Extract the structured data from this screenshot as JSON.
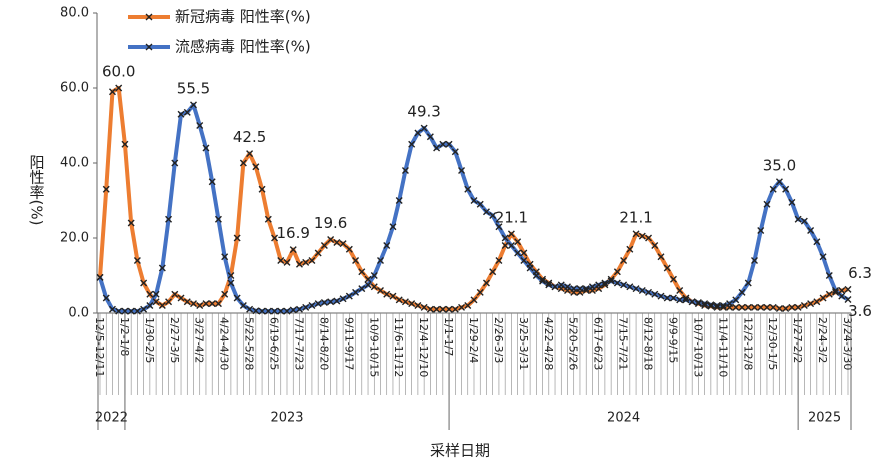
{
  "chart_data": {
    "type": "line",
    "y_label": "阳性率(%)",
    "x_label": "采样日期",
    "ylim": [
      0,
      80
    ],
    "yticks": [
      {
        "value": 0,
        "label": "0.0"
      },
      {
        "value": 20,
        "label": "20.0"
      },
      {
        "value": 40,
        "label": "40.0"
      },
      {
        "value": 60,
        "label": "60.0"
      },
      {
        "value": 80,
        "label": "80.0"
      }
    ],
    "x_groups": [
      "2022",
      "2023",
      "2024",
      "2025"
    ],
    "legend": "upper left",
    "categories": [
      "12/5-12/11",
      null,
      null,
      null,
      "1/2-1/8",
      null,
      null,
      null,
      "1/30-2/5",
      null,
      null,
      null,
      "2/27-3/5",
      null,
      null,
      null,
      "3/27-4/2",
      null,
      null,
      null,
      "4/24-4/30",
      null,
      null,
      null,
      "5/22-5/28",
      null,
      null,
      null,
      "6/19-6/25",
      null,
      null,
      null,
      "7/17-7/23",
      null,
      null,
      null,
      "8/14-8/20",
      null,
      null,
      null,
      "9/11-9/17",
      null,
      null,
      null,
      "10/9-10/15",
      null,
      null,
      null,
      "11/6-11/12",
      null,
      null,
      null,
      "12/4-12/10",
      null,
      null,
      null,
      "1/1-1/7",
      null,
      null,
      null,
      "1/29-2/4",
      null,
      null,
      null,
      "2/26-3/3",
      null,
      null,
      null,
      "3/25-3/31",
      null,
      null,
      null,
      "4/22-4/28",
      null,
      null,
      null,
      "5/20-5/26",
      null,
      null,
      null,
      "6/17-6/23",
      null,
      null,
      null,
      "7/15-7/21",
      null,
      null,
      null,
      "8/12-8/18",
      null,
      null,
      null,
      "9/9-9/15",
      null,
      null,
      null,
      "10/7-10/13",
      null,
      null,
      null,
      "11/4-11/10",
      null,
      null,
      null,
      "12/2-12/8",
      null,
      null,
      null,
      "12/30-1/5",
      null,
      null,
      null,
      "1/27-2/2",
      null,
      null,
      null,
      "2/24-3/2",
      null,
      null,
      null,
      "3/24-3/30"
    ],
    "series": [
      {
        "name": "新冠病毒 阳性率(%)",
        "color": "#ed7d31",
        "values": [
          9.5,
          33,
          59,
          60,
          45,
          24,
          14,
          8,
          5,
          3,
          2,
          3,
          5,
          4,
          3,
          2.5,
          2,
          2.5,
          2.5,
          2.5,
          5,
          10,
          20,
          40,
          42.5,
          39,
          33,
          25,
          20,
          14,
          13.5,
          16.9,
          13,
          13.5,
          14,
          16,
          18,
          19.6,
          18.8,
          18.5,
          17,
          14,
          11,
          9,
          7,
          6,
          5,
          4.5,
          3.5,
          3,
          2.5,
          2,
          1.5,
          1,
          1,
          1,
          1,
          1,
          1.5,
          2,
          3.5,
          5.5,
          8,
          11,
          14,
          18,
          21.1,
          19,
          16,
          13,
          11,
          9,
          8,
          7,
          6.5,
          6,
          5.5,
          5.5,
          6,
          6,
          6.5,
          7.5,
          9,
          11,
          14,
          17,
          21.1,
          20.5,
          20,
          18,
          15,
          12,
          9,
          6,
          4,
          3,
          2.5,
          2,
          1.8,
          1.5,
          1.5,
          1.5,
          1.5,
          1.5,
          1.5,
          1.5,
          1.5,
          1.5,
          1.5,
          1.2,
          1.2,
          1.5,
          1.5,
          2,
          2.5,
          3,
          4,
          5,
          5.5,
          6,
          6.3
        ],
        "value_labels": [
          null,
          null,
          null,
          "60.0",
          null,
          null,
          null,
          null,
          null,
          null,
          null,
          null,
          null,
          null,
          null,
          null,
          null,
          null,
          null,
          null,
          null,
          null,
          null,
          null,
          "42.5",
          null,
          null,
          null,
          null,
          null,
          null,
          "16.9",
          null,
          null,
          null,
          null,
          null,
          "19.6",
          null,
          null,
          null,
          null,
          null,
          null,
          null,
          null,
          null,
          null,
          null,
          null,
          null,
          null,
          null,
          null,
          null,
          null,
          null,
          null,
          null,
          null,
          null,
          null,
          null,
          null,
          null,
          null,
          "21.1",
          null,
          null,
          null,
          null,
          null,
          null,
          null,
          null,
          null,
          null,
          null,
          null,
          null,
          null,
          null,
          null,
          null,
          null,
          null,
          "21.1",
          null,
          null,
          null,
          null,
          null,
          null,
          null,
          null,
          null,
          null,
          null,
          null,
          null,
          null,
          null,
          null,
          null,
          null,
          null,
          null,
          null,
          null,
          null,
          null,
          null,
          null,
          null,
          null,
          null,
          null,
          null,
          null,
          null,
          "6.3"
        ]
      },
      {
        "name": "流感病毒 阳性率(%)",
        "color": "#4472c4",
        "values": [
          9.5,
          4,
          1,
          0.5,
          0.5,
          0.5,
          0.5,
          1,
          2,
          5,
          12,
          25,
          40,
          53,
          53.5,
          55.5,
          50,
          44,
          35,
          25,
          15,
          8,
          4,
          2,
          1,
          0.6,
          0.5,
          0.5,
          0.5,
          0.5,
          0.5,
          0.8,
          1,
          1.5,
          2,
          2.5,
          2.8,
          3,
          3.2,
          3.8,
          4.5,
          5.5,
          6.5,
          7.5,
          10,
          14,
          18,
          23,
          30,
          38,
          45,
          48,
          49.3,
          47,
          44,
          45,
          45,
          43,
          38,
          33,
          30,
          29,
          27,
          26,
          23,
          20,
          18,
          16,
          14,
          12,
          10,
          8.5,
          7.5,
          7,
          7.5,
          7,
          6.5,
          6.5,
          6.5,
          7,
          7.5,
          8,
          8.5,
          8,
          7.5,
          7,
          6.5,
          6,
          5.5,
          5,
          4.5,
          4,
          4,
          3.5,
          3.5,
          3,
          2.8,
          2.5,
          2.2,
          2,
          2,
          2.5,
          3.5,
          5.5,
          8,
          14,
          22,
          29,
          33,
          35,
          33,
          29.5,
          25,
          24.5,
          22,
          19,
          15,
          10,
          6,
          4.5,
          3.6
        ],
        "value_labels": [
          null,
          null,
          null,
          null,
          null,
          null,
          null,
          null,
          null,
          null,
          null,
          null,
          null,
          null,
          null,
          "55.5",
          null,
          null,
          null,
          null,
          null,
          null,
          null,
          null,
          null,
          null,
          null,
          null,
          null,
          null,
          null,
          null,
          null,
          null,
          null,
          null,
          null,
          null,
          null,
          null,
          null,
          null,
          null,
          null,
          null,
          null,
          null,
          null,
          null,
          null,
          null,
          null,
          "49.3",
          null,
          null,
          null,
          null,
          null,
          null,
          null,
          null,
          null,
          null,
          null,
          null,
          null,
          null,
          null,
          null,
          null,
          null,
          null,
          null,
          null,
          null,
          null,
          null,
          null,
          null,
          null,
          null,
          null,
          null,
          null,
          null,
          null,
          null,
          null,
          null,
          null,
          null,
          null,
          null,
          null,
          null,
          null,
          null,
          null,
          null,
          null,
          null,
          null,
          null,
          null,
          null,
          null,
          null,
          null,
          null,
          "35.0",
          null,
          null,
          null,
          null,
          null,
          null,
          null,
          null,
          null,
          null,
          "3.6"
        ]
      }
    ]
  }
}
